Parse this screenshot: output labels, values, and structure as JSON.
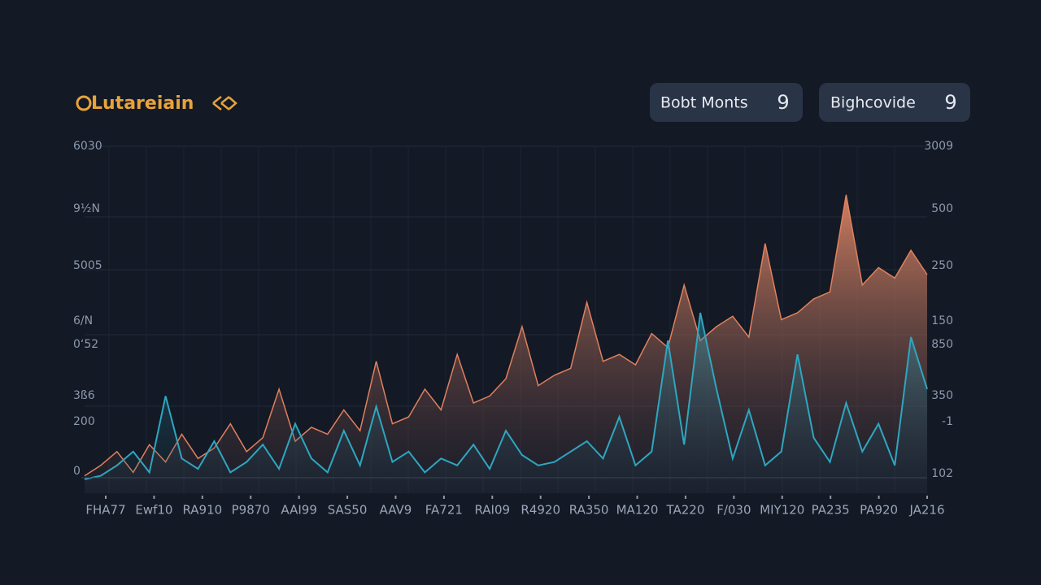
{
  "header": {
    "logo": "Lutareiain",
    "pills": [
      {
        "label": "Bobt Monts",
        "count": "9"
      },
      {
        "label": "Bighcovide",
        "count": "9"
      }
    ]
  },
  "chart_data": {
    "type": "area-line",
    "left_axis_labels": [
      "6030",
      "9½N",
      "5005",
      "6/N",
      "0ʻ52",
      "3ß6",
      "200",
      "0"
    ],
    "right_axis_labels": [
      "3009",
      "500",
      "250",
      "150",
      "850",
      "350",
      "-1",
      "102"
    ],
    "x_labels": [
      "FHA77",
      "Ewf10",
      "RA910",
      "P9870",
      "AAI99",
      "SAS50",
      "AAV9",
      "FA721",
      "RAI09",
      "R4920",
      "RA350",
      "MA120",
      "TA220",
      "F/030",
      "MIY120",
      "PA235",
      "PA920",
      "JA216"
    ],
    "ylim": [
      0,
      100
    ],
    "series": [
      {
        "name": "orange",
        "color": "#e0805e",
        "values": [
          5,
          8,
          12,
          6,
          14,
          9,
          17,
          10,
          13,
          20,
          12,
          16,
          30,
          15,
          19,
          17,
          24,
          18,
          38,
          20,
          22,
          30,
          24,
          40,
          26,
          28,
          33,
          48,
          31,
          34,
          36,
          55,
          38,
          40,
          37,
          46,
          42,
          60,
          44,
          48,
          51,
          45,
          72,
          50,
          52,
          56,
          58,
          86,
          60,
          65,
          62,
          70,
          63
        ]
      },
      {
        "name": "teal",
        "color": "#2fa6c0",
        "values": [
          4,
          5,
          8,
          12,
          6,
          28,
          10,
          7,
          15,
          6,
          9,
          14,
          7,
          20,
          10,
          6,
          18,
          8,
          25,
          9,
          12,
          6,
          10,
          8,
          14,
          7,
          18,
          11,
          8,
          9,
          12,
          15,
          10,
          22,
          8,
          12,
          44,
          14,
          52,
          30,
          10,
          24,
          8,
          12,
          40,
          16,
          9,
          26,
          12,
          20,
          8,
          45,
          30
        ]
      }
    ]
  }
}
